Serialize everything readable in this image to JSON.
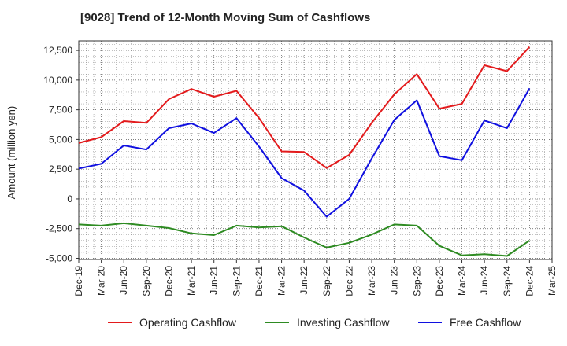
{
  "chart_data": {
    "type": "line",
    "title": "[9028]  Trend of 12-Month Moving Sum of Cashflows",
    "ylabel": "Amount (million yen)",
    "xlabel": "",
    "categories": [
      "Dec-19",
      "Mar-20",
      "Jun-20",
      "Sep-20",
      "Dec-20",
      "Mar-21",
      "Jun-21",
      "Sep-21",
      "Dec-21",
      "Mar-22",
      "Jun-22",
      "Sep-22",
      "Dec-22",
      "Mar-23",
      "Jun-23",
      "Sep-23",
      "Dec-23",
      "Mar-24",
      "Jun-24",
      "Sep-24",
      "Dec-24",
      "Mar-25"
    ],
    "ylim": [
      -5100,
      13300
    ],
    "yticks": [
      -5000,
      -2500,
      0,
      2500,
      5000,
      7500,
      10000,
      12500
    ],
    "ytick_labels": [
      "-5,000",
      "-2,500",
      "0",
      "2,500",
      "5,000",
      "7,500",
      "10,000",
      "12,500"
    ],
    "grid": true,
    "legend_position": "bottom",
    "series": [
      {
        "name": "Operating Cashflow",
        "color": "#e31a1c",
        "values": [
          4700,
          5200,
          6550,
          6400,
          8400,
          9250,
          8600,
          9100,
          6800,
          4000,
          3950,
          2600,
          3700,
          6400,
          8800,
          10500,
          7600,
          8000,
          11250,
          10750,
          12800,
          null
        ]
      },
      {
        "name": "Investing Cashflow",
        "color": "#2e8b22",
        "values": [
          -2150,
          -2250,
          -2050,
          -2250,
          -2450,
          -2900,
          -3050,
          -2250,
          -2400,
          -2300,
          -3250,
          -4100,
          -3700,
          -3000,
          -2150,
          -2250,
          -3950,
          -4750,
          -4650,
          -4800,
          -3500,
          null
        ]
      },
      {
        "name": "Free Cashflow",
        "color": "#1010e0",
        "values": [
          2550,
          2950,
          4500,
          4150,
          5950,
          6350,
          5550,
          6800,
          4400,
          1750,
          700,
          -1500,
          0,
          3400,
          6650,
          8300,
          3600,
          3250,
          6600,
          5950,
          9300,
          null
        ]
      }
    ]
  }
}
